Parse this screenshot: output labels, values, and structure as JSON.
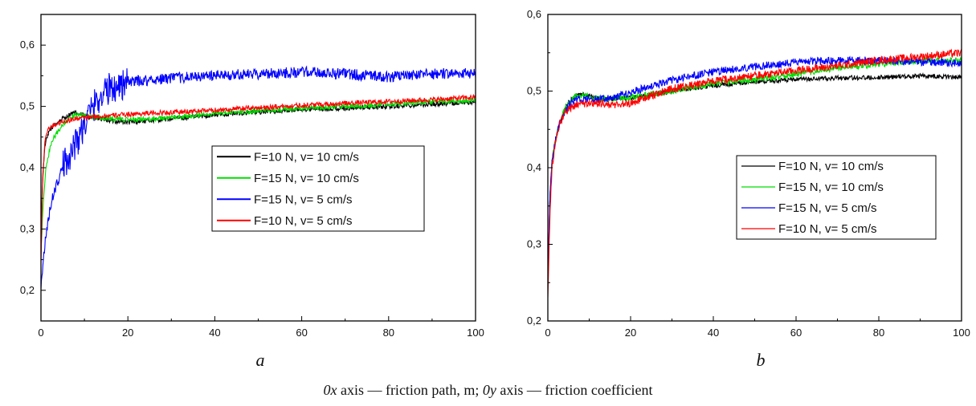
{
  "caption": {
    "ox": "0x",
    "ox_text": " axis — friction path, m; ",
    "oy": "0y",
    "oy_text": " axis — friction coefficient"
  },
  "chart_data": [
    {
      "type": "line",
      "panel_label": "a",
      "xlim": [
        0,
        100
      ],
      "ylim": [
        0.15,
        0.65
      ],
      "xticks": [
        0,
        20,
        40,
        60,
        80,
        100
      ],
      "xtick_labels": [
        "0",
        "20",
        "40",
        "60",
        "80",
        "100"
      ],
      "yticks": [
        0.2,
        0.3,
        0.4,
        0.5,
        0.6
      ],
      "ytick_labels": [
        "0,2",
        "0,3",
        "0,4",
        "0,5",
        "0,6"
      ],
      "legend_position": "center-right",
      "series": [
        {
          "name": "F=10 N, v= 10 cm/s",
          "color": "#000000",
          "x": [
            0,
            0.5,
            1,
            2,
            3,
            5,
            7,
            8,
            10,
            13,
            16,
            20,
            25,
            30,
            40,
            50,
            60,
            70,
            80,
            90,
            100
          ],
          "y": [
            0.3,
            0.4,
            0.44,
            0.46,
            0.47,
            0.48,
            0.488,
            0.489,
            0.485,
            0.48,
            0.477,
            0.474,
            0.477,
            0.48,
            0.486,
            0.491,
            0.495,
            0.497,
            0.5,
            0.504,
            0.507
          ]
        },
        {
          "name": "F=15 N, v= 10 cm/s",
          "color": "#00dd00",
          "x": [
            0,
            0.5,
            1,
            2,
            3,
            5,
            7,
            8,
            10,
            13,
            16,
            20,
            25,
            30,
            40,
            50,
            60,
            70,
            80,
            90,
            100
          ],
          "y": [
            0.26,
            0.34,
            0.39,
            0.43,
            0.45,
            0.47,
            0.483,
            0.486,
            0.485,
            0.482,
            0.48,
            0.478,
            0.479,
            0.482,
            0.488,
            0.493,
            0.497,
            0.5,
            0.503,
            0.507,
            0.51
          ]
        },
        {
          "name": "F=15 N, v= 5 cm/s",
          "color": "#0000ff",
          "x": [
            0,
            1,
            2,
            3,
            4,
            5,
            6,
            8,
            10,
            12,
            14,
            16,
            20,
            25,
            30,
            40,
            50,
            60,
            70,
            80,
            90,
            100
          ],
          "y": [
            0.21,
            0.28,
            0.33,
            0.36,
            0.38,
            0.4,
            0.415,
            0.44,
            0.47,
            0.5,
            0.52,
            0.53,
            0.54,
            0.543,
            0.546,
            0.55,
            0.553,
            0.556,
            0.553,
            0.548,
            0.553,
            0.555
          ]
        },
        {
          "name": "F=10 N, v= 5 cm/s",
          "color": "#ff0000",
          "x": [
            0,
            0.3,
            0.7,
            1,
            1.5,
            2,
            3,
            5,
            8,
            12,
            16,
            20,
            25,
            30,
            40,
            50,
            60,
            70,
            80,
            90,
            100
          ],
          "y": [
            0.24,
            0.36,
            0.42,
            0.45,
            0.46,
            0.465,
            0.47,
            0.475,
            0.48,
            0.483,
            0.485,
            0.487,
            0.489,
            0.49,
            0.494,
            0.498,
            0.502,
            0.505,
            0.508,
            0.511,
            0.515
          ]
        }
      ]
    },
    {
      "type": "line",
      "panel_label": "b",
      "xlim": [
        0,
        100
      ],
      "ylim": [
        0.2,
        0.6
      ],
      "xticks": [
        0,
        20,
        40,
        60,
        80,
        100
      ],
      "xtick_labels": [
        "0",
        "20",
        "40",
        "60",
        "80",
        "100"
      ],
      "yticks": [
        0.2,
        0.3,
        0.4,
        0.5,
        0.6
      ],
      "ytick_labels": [
        "0,2",
        "0,3",
        "0,4",
        "0,5",
        "0,6"
      ],
      "legend_position": "center-right",
      "series": [
        {
          "name": "F=10 N, v= 10 cm/s",
          "color": "#000000",
          "x": [
            0,
            0.5,
            1,
            2,
            3,
            4,
            5,
            7,
            10,
            12,
            15,
            20,
            25,
            30,
            40,
            50,
            60,
            70,
            80,
            90,
            100
          ],
          "y": [
            0.25,
            0.36,
            0.41,
            0.44,
            0.46,
            0.475,
            0.485,
            0.496,
            0.495,
            0.49,
            0.49,
            0.491,
            0.495,
            0.5,
            0.507,
            0.512,
            0.515,
            0.517,
            0.518,
            0.52,
            0.518
          ]
        },
        {
          "name": "F=15 N, v= 10 cm/s",
          "color": "#00dd00",
          "x": [
            0,
            0.5,
            1,
            2,
            3,
            4,
            5,
            7,
            10,
            12,
            15,
            20,
            25,
            30,
            40,
            50,
            60,
            70,
            80,
            90,
            100
          ],
          "y": [
            0.25,
            0.36,
            0.41,
            0.44,
            0.46,
            0.475,
            0.485,
            0.494,
            0.493,
            0.49,
            0.49,
            0.492,
            0.496,
            0.5,
            0.51,
            0.515,
            0.522,
            0.53,
            0.535,
            0.54,
            0.54
          ]
        },
        {
          "name": "F=15 N, v= 5 cm/s",
          "color": "#0000ff",
          "x": [
            0,
            0.5,
            1,
            2,
            3,
            4,
            5,
            7,
            10,
            12,
            15,
            20,
            25,
            30,
            40,
            50,
            60,
            70,
            80,
            90,
            100
          ],
          "y": [
            0.25,
            0.36,
            0.41,
            0.44,
            0.46,
            0.472,
            0.482,
            0.49,
            0.489,
            0.489,
            0.49,
            0.498,
            0.507,
            0.514,
            0.525,
            0.532,
            0.538,
            0.54,
            0.54,
            0.538,
            0.537
          ]
        },
        {
          "name": "F=10 N, v= 5 cm/s",
          "color": "#ff0000",
          "x": [
            0,
            0.5,
            1,
            2,
            3,
            4,
            5,
            7,
            10,
            12,
            15,
            20,
            25,
            30,
            40,
            50,
            60,
            70,
            80,
            90,
            100
          ],
          "y": [
            0.23,
            0.34,
            0.4,
            0.44,
            0.46,
            0.47,
            0.477,
            0.482,
            0.484,
            0.484,
            0.482,
            0.484,
            0.494,
            0.503,
            0.513,
            0.52,
            0.527,
            0.533,
            0.54,
            0.545,
            0.55
          ]
        }
      ]
    }
  ]
}
